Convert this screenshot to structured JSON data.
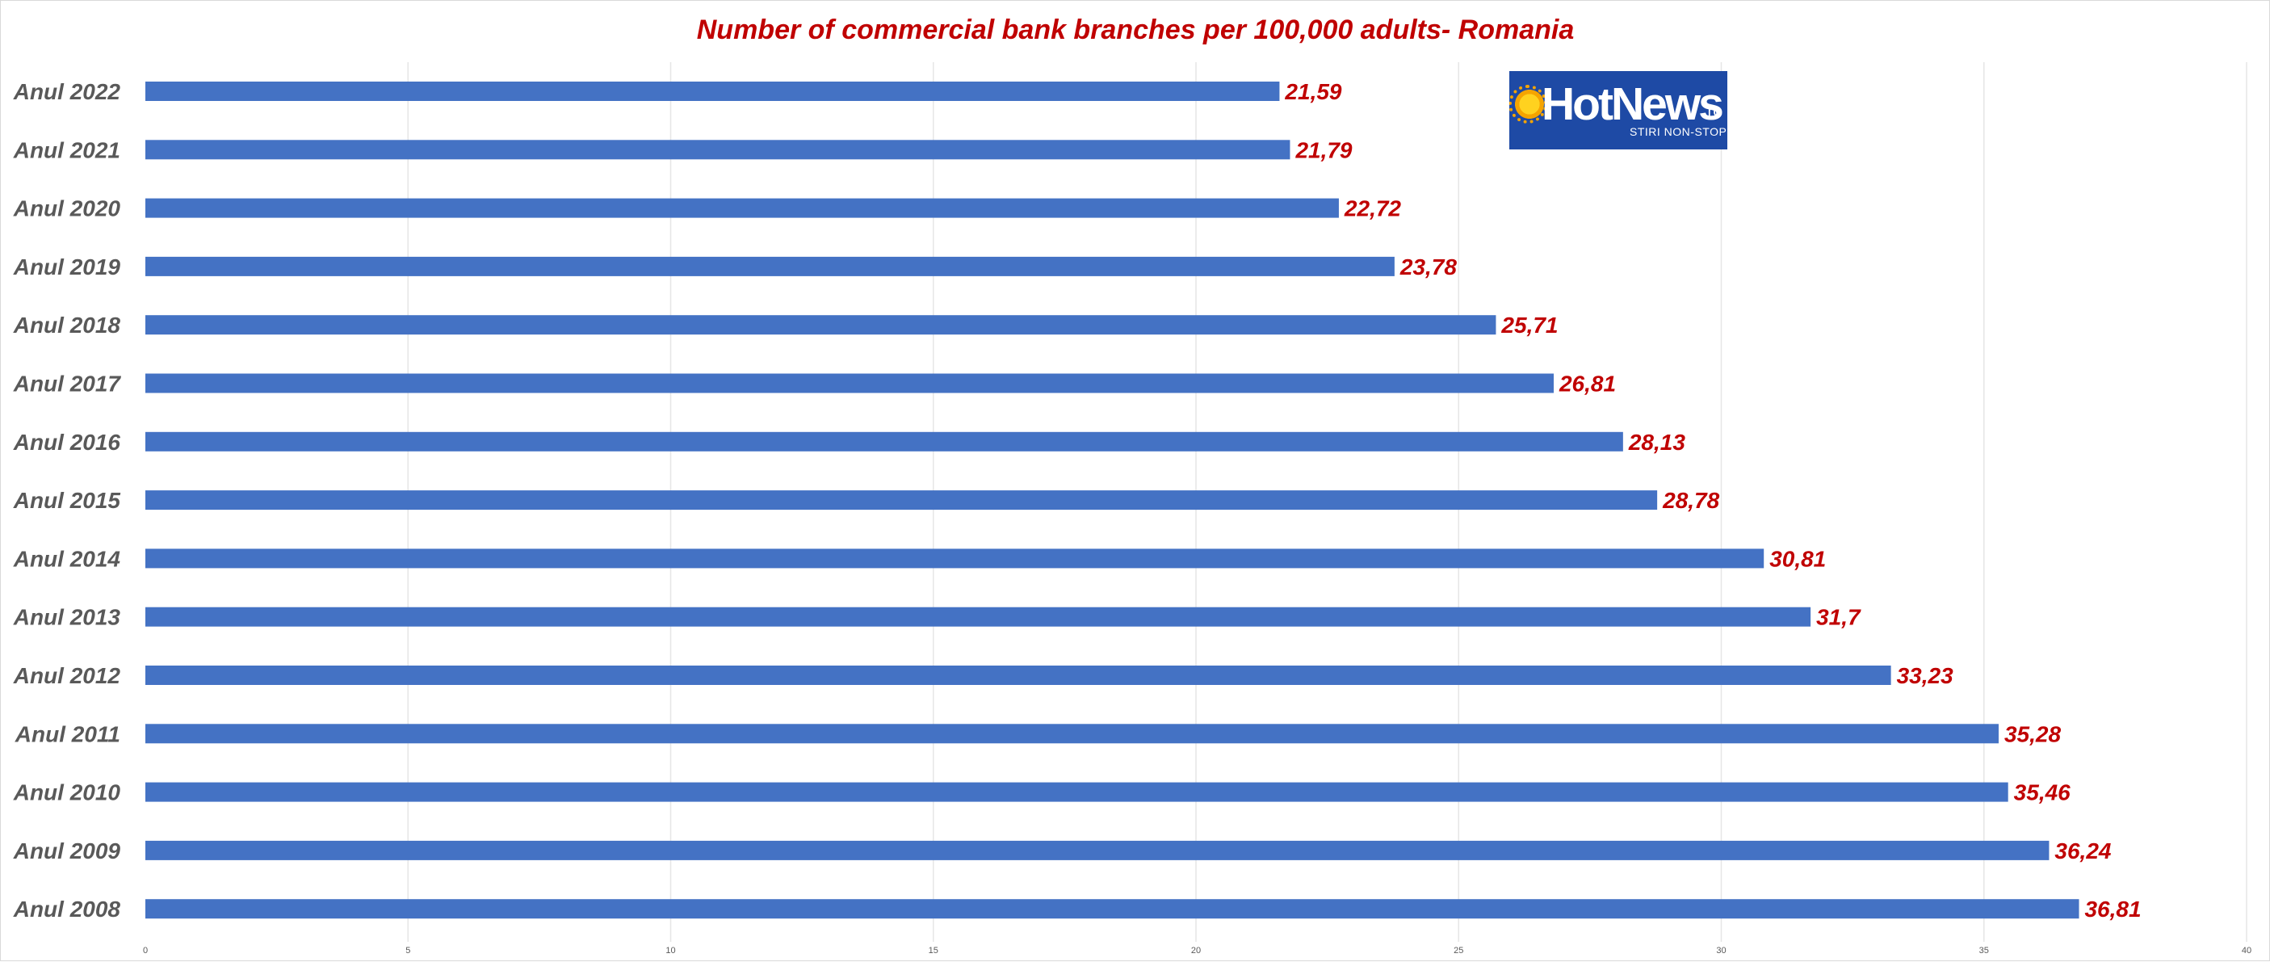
{
  "chart_data": {
    "type": "bar",
    "orientation": "horizontal",
    "title": "Number of commercial bank branches per 100,000 adults- Romania",
    "categories": [
      "Anul 2022",
      "Anul 2021",
      "Anul 2020",
      "Anul 2019",
      "Anul 2018",
      "Anul 2017",
      "Anul 2016",
      "Anul 2015",
      "Anul 2014",
      "Anul 2013",
      "Anul 2012",
      "Anul 2011",
      "Anul 2010",
      "Anul 2009",
      "Anul 2008"
    ],
    "values": [
      21.59,
      21.79,
      22.72,
      23.78,
      25.71,
      26.81,
      28.13,
      28.78,
      30.81,
      31.7,
      33.23,
      35.28,
      35.46,
      36.24,
      36.81
    ],
    "value_labels": [
      "21,59",
      "21,79",
      "22,72",
      "23,78",
      "25,71",
      "26,81",
      "28,13",
      "28,78",
      "30,81",
      "31,7",
      "33,23",
      "35,28",
      "35,46",
      "36,24",
      "36,81"
    ],
    "xlim": [
      0,
      40
    ],
    "x_ticks": [
      0,
      5,
      10,
      15,
      20,
      25,
      30,
      35,
      40
    ],
    "x_tick_labels": [
      "0",
      "5",
      "10",
      "15",
      "20",
      "25",
      "30",
      "35",
      "40"
    ],
    "xlabel": "",
    "ylabel": "",
    "grid": "vertical",
    "legend": "none",
    "colors": {
      "bar": "#4472c4",
      "title": "#c00000",
      "value_label": "#c00000",
      "category_label": "#595959",
      "gridline": "#e6e6e6"
    }
  },
  "logo": {
    "brand": "HotNews",
    "tld": ".ro",
    "tagline": "STIRI NON-STOP",
    "background": "#1e4aa5",
    "icon": "sun-icon"
  }
}
